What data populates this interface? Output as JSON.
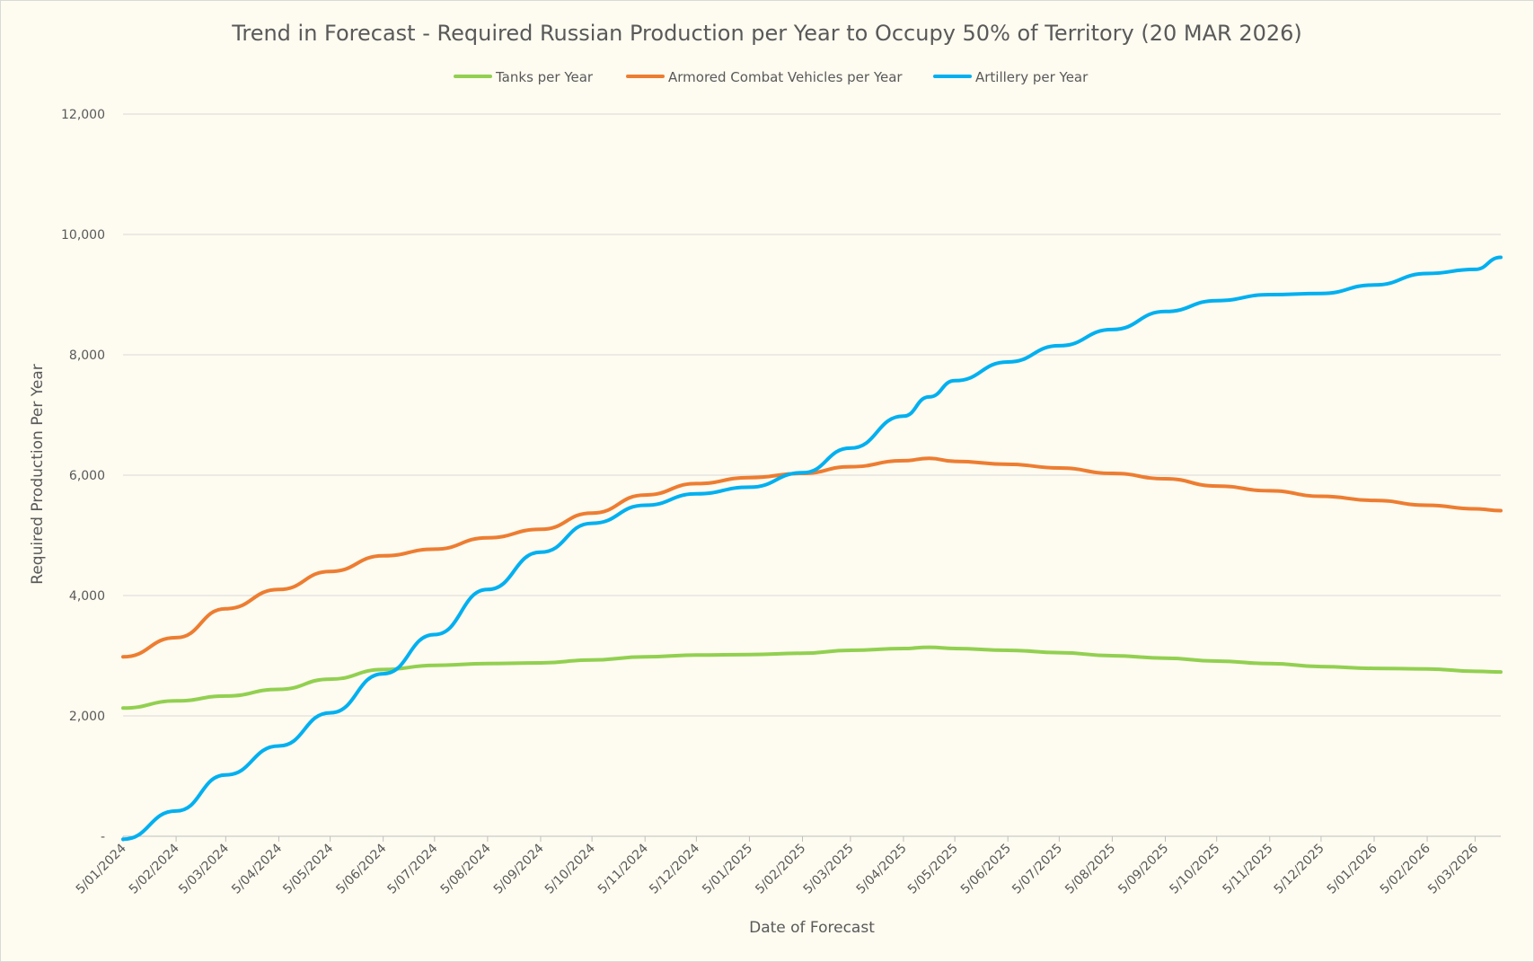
{
  "chart_data": {
    "type": "line",
    "title": "Trend in Forecast - Required Russian Production per Year to Occupy 50% of Territory (20 MAR 2026)",
    "xlabel": "Date of Forecast",
    "ylabel": "Required Production Per Year",
    "ylim": [
      0,
      12000
    ],
    "yticks": [
      0,
      2000,
      4000,
      6000,
      8000,
      10000,
      12000
    ],
    "ytick_labels": [
      "-",
      "2,000",
      "4,000",
      "6,000",
      "8,000",
      "10,000",
      "12,000"
    ],
    "x_tick_labels": [
      "5/01/2024",
      "5/02/2024",
      "5/03/2024",
      "5/04/2024",
      "5/05/2024",
      "5/06/2024",
      "5/07/2024",
      "5/08/2024",
      "5/09/2024",
      "5/10/2024",
      "5/11/2024",
      "5/12/2024",
      "5/01/2025",
      "5/02/2025",
      "5/03/2025",
      "5/04/2025",
      "5/05/2025",
      "5/06/2025",
      "5/07/2025",
      "5/08/2025",
      "5/09/2025",
      "5/10/2025",
      "5/11/2025",
      "5/12/2025",
      "5/01/2026",
      "5/02/2026",
      "5/03/2026"
    ],
    "x_range": [
      "2024-01-05",
      "2026-03-20"
    ],
    "grid": "horizontal",
    "legend_position": "top",
    "series": [
      {
        "name": "Tanks per Year",
        "color": "#92d050",
        "x": [
          "2024-01-05",
          "2024-02-05",
          "2024-03-05",
          "2024-04-05",
          "2024-05-05",
          "2024-06-05",
          "2024-07-05",
          "2024-08-05",
          "2024-09-05",
          "2024-10-05",
          "2024-11-05",
          "2024-12-05",
          "2025-01-05",
          "2025-02-05",
          "2025-03-05",
          "2025-04-05",
          "2025-04-20",
          "2025-05-05",
          "2025-06-05",
          "2025-07-05",
          "2025-08-05",
          "2025-09-05",
          "2025-10-05",
          "2025-11-05",
          "2025-12-05",
          "2026-01-05",
          "2026-02-05",
          "2026-03-05",
          "2026-03-20"
        ],
        "values": [
          2130,
          2250,
          2330,
          2440,
          2610,
          2770,
          2840,
          2870,
          2880,
          2930,
          2980,
          3010,
          3020,
          3040,
          3090,
          3120,
          3140,
          3120,
          3090,
          3050,
          3000,
          2960,
          2910,
          2870,
          2820,
          2790,
          2780,
          2740,
          2730
        ]
      },
      {
        "name": "Armored Combat Vehicles per Year",
        "color": "#ed7d31",
        "x": [
          "2024-01-05",
          "2024-02-05",
          "2024-03-05",
          "2024-04-05",
          "2024-05-05",
          "2024-06-05",
          "2024-07-05",
          "2024-08-05",
          "2024-09-05",
          "2024-10-05",
          "2024-11-05",
          "2024-12-05",
          "2025-01-05",
          "2025-02-05",
          "2025-03-05",
          "2025-04-05",
          "2025-04-20",
          "2025-05-05",
          "2025-06-05",
          "2025-07-05",
          "2025-08-05",
          "2025-09-05",
          "2025-10-05",
          "2025-11-05",
          "2025-12-05",
          "2026-01-05",
          "2026-02-05",
          "2026-03-05",
          "2026-03-20"
        ],
        "values": [
          2980,
          3300,
          3780,
          4100,
          4400,
          4660,
          4770,
          4960,
          5100,
          5370,
          5670,
          5860,
          5960,
          6030,
          6140,
          6240,
          6280,
          6230,
          6180,
          6120,
          6030,
          5940,
          5820,
          5740,
          5650,
          5580,
          5500,
          5440,
          5410
        ]
      },
      {
        "name": "Artillery per Year",
        "color": "#00b0f0",
        "x": [
          "2024-01-05",
          "2024-02-05",
          "2024-03-05",
          "2024-04-05",
          "2024-05-05",
          "2024-06-05",
          "2024-07-05",
          "2024-08-05",
          "2024-09-05",
          "2024-10-05",
          "2024-11-05",
          "2024-12-05",
          "2025-01-05",
          "2025-02-05",
          "2025-03-05",
          "2025-04-05",
          "2025-04-20",
          "2025-05-05",
          "2025-06-05",
          "2025-07-05",
          "2025-08-05",
          "2025-09-05",
          "2025-10-05",
          "2025-11-05",
          "2025-12-05",
          "2026-01-05",
          "2026-02-05",
          "2026-03-05",
          "2026-03-20"
        ],
        "values": [
          -50,
          420,
          1020,
          1500,
          2050,
          2700,
          3350,
          4100,
          4720,
          5200,
          5500,
          5690,
          5800,
          6040,
          6450,
          6980,
          7300,
          7570,
          7880,
          8150,
          8420,
          8720,
          8900,
          9000,
          9020,
          9160,
          9350,
          9420,
          9620
        ]
      }
    ]
  }
}
